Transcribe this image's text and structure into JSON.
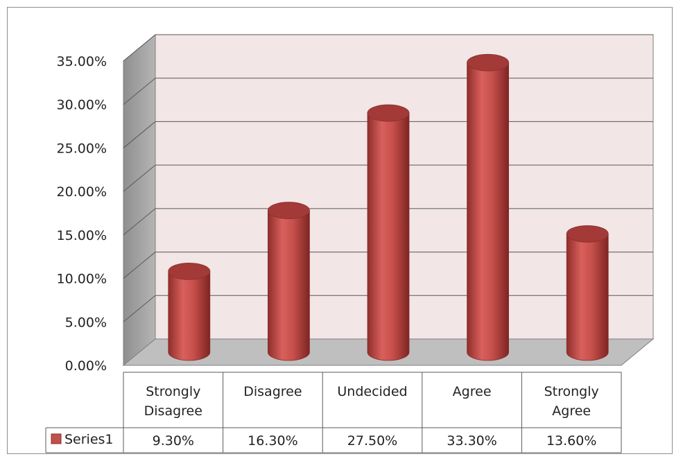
{
  "chart_data": {
    "type": "bar",
    "style": "3d-cylinder",
    "categories": [
      [
        "Strongly",
        "Disagree"
      ],
      [
        "Disagree"
      ],
      [
        "Undecided"
      ],
      [
        "Agree"
      ],
      [
        "Strongly",
        "Agree"
      ]
    ],
    "series": [
      {
        "name": "Series1",
        "values": [
          9.3,
          16.3,
          27.5,
          33.3,
          13.6
        ],
        "value_labels": [
          "9.30%",
          "16.30%",
          "27.50%",
          "33.30%",
          "13.60%"
        ],
        "color": "#c0504d"
      }
    ],
    "ylim": [
      0,
      35
    ],
    "yticks": [
      0,
      5,
      10,
      15,
      20,
      25,
      30,
      35
    ],
    "ytick_labels": [
      "0.00%",
      "5.00%",
      "10.00%",
      "15.00%",
      "20.00%",
      "25.00%",
      "30.00%",
      "35.00%"
    ],
    "grid": true,
    "data_table": true,
    "colors": {
      "back_wall": "#f2e6e6",
      "side_wall": "#a6a6a6",
      "floor": "#bfbfbf",
      "gridline": "#595959",
      "bar": "#c0504d",
      "bar_top": "#a33a37"
    }
  }
}
